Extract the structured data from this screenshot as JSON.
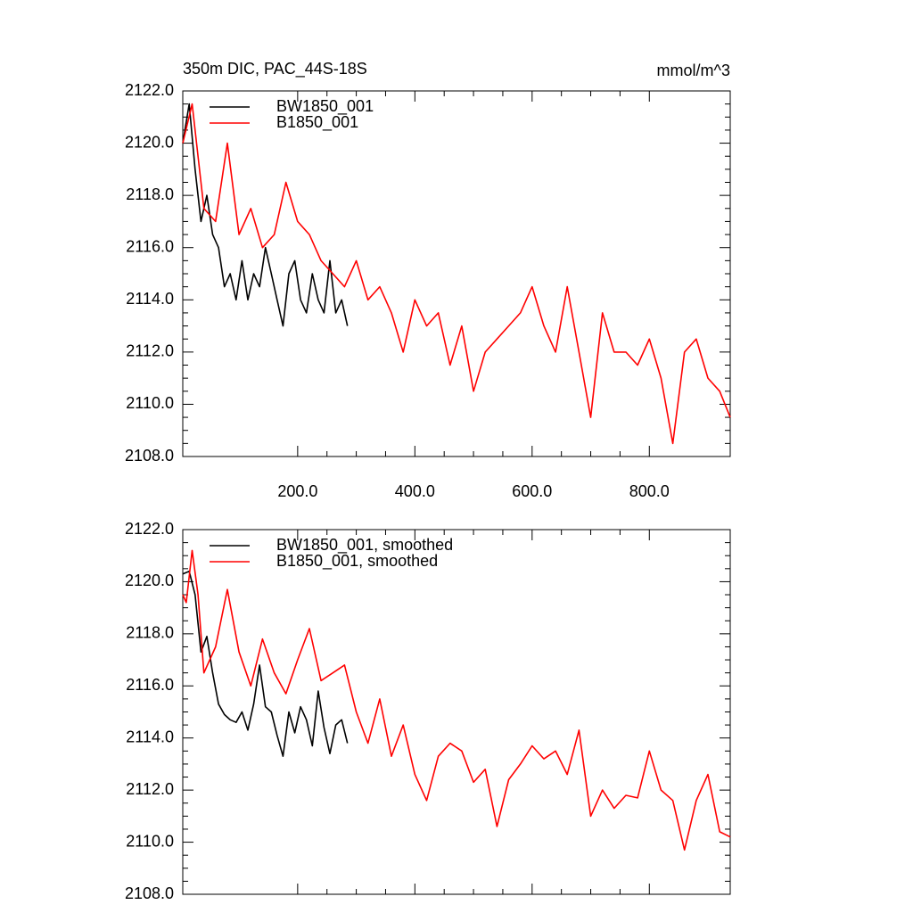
{
  "chart_data": [
    {
      "type": "line",
      "title": "350m DIC, PAC_44S-18S",
      "units": "mmol/m^3",
      "xlim": [
        4,
        938
      ],
      "ylim": [
        2108,
        2122
      ],
      "xticks": [
        {
          "value": 200,
          "label": "200.0"
        },
        {
          "value": 400,
          "label": "400.0"
        },
        {
          "value": 600,
          "label": "600.0"
        },
        {
          "value": 800,
          "label": "800.0"
        }
      ],
      "yticks": [
        {
          "value": 2108,
          "label": "2108.0"
        },
        {
          "value": 2110,
          "label": "2110.0"
        },
        {
          "value": 2112,
          "label": "2112.0"
        },
        {
          "value": 2114,
          "label": "2114.0"
        },
        {
          "value": 2116,
          "label": "2116.0"
        },
        {
          "value": 2118,
          "label": "2118.0"
        },
        {
          "value": 2120,
          "label": "2120.0"
        },
        {
          "value": 2122,
          "label": "2122.0"
        }
      ],
      "series": [
        {
          "name": "BW1850_001",
          "color": "#000000",
          "x": [
            4,
            15,
            25,
            35,
            45,
            55,
            65,
            75,
            85,
            95,
            105,
            115,
            125,
            135,
            145,
            155,
            165,
            175,
            185,
            195,
            205,
            215,
            225,
            235,
            245,
            255,
            265,
            275,
            285
          ],
          "values": [
            2120,
            2121.5,
            2119,
            2117,
            2118,
            2116.5,
            2116,
            2114.5,
            2115,
            2114,
            2115.5,
            2114,
            2115,
            2114.5,
            2116,
            2115,
            2114,
            2113,
            2115,
            2115.5,
            2114,
            2113.5,
            2115,
            2114,
            2113.5,
            2115.5,
            2113.5,
            2114,
            2113
          ]
        },
        {
          "name": "B1850_001",
          "color": "#ff0000",
          "x": [
            4,
            20,
            40,
            60,
            80,
            100,
            120,
            140,
            160,
            180,
            200,
            220,
            240,
            260,
            280,
            300,
            320,
            340,
            360,
            380,
            400,
            420,
            440,
            460,
            480,
            500,
            520,
            540,
            560,
            580,
            600,
            620,
            640,
            660,
            680,
            700,
            720,
            740,
            760,
            780,
            800,
            820,
            840,
            860,
            880,
            900,
            920,
            938
          ],
          "values": [
            2120,
            2121.5,
            2117.5,
            2117,
            2120,
            2116.5,
            2117.5,
            2116,
            2116.5,
            2118.5,
            2117,
            2116.5,
            2115.5,
            2115,
            2114.5,
            2115.5,
            2114,
            2114.5,
            2113.5,
            2112,
            2114,
            2113,
            2113.5,
            2111.5,
            2113,
            2110.5,
            2112,
            2112.5,
            2113,
            2113.5,
            2114.5,
            2113,
            2112,
            2114.5,
            2112,
            2109.5,
            2113.5,
            2112,
            2112,
            2111.5,
            2112.5,
            2111,
            2108.5,
            2112,
            2112.5,
            2111,
            2110.5,
            2109.5
          ]
        }
      ]
    },
    {
      "type": "line",
      "xlim": [
        4,
        938
      ],
      "ylim": [
        2108,
        2122
      ],
      "xticks": [
        200,
        400,
        600,
        800
      ],
      "yticks": [
        {
          "value": 2108,
          "label": "2108.0"
        },
        {
          "value": 2110,
          "label": "2110.0"
        },
        {
          "value": 2112,
          "label": "2112.0"
        },
        {
          "value": 2114,
          "label": "2114.0"
        },
        {
          "value": 2116,
          "label": "2116.0"
        },
        {
          "value": 2118,
          "label": "2118.0"
        },
        {
          "value": 2120,
          "label": "2120.0"
        },
        {
          "value": 2122,
          "label": "2122.0"
        }
      ],
      "series": [
        {
          "name": "BW1850_001, smoothed",
          "color": "#000000",
          "x": [
            4,
            15,
            25,
            35,
            45,
            55,
            65,
            75,
            85,
            95,
            105,
            115,
            125,
            135,
            145,
            155,
            165,
            175,
            185,
            195,
            205,
            215,
            225,
            235,
            245,
            255,
            265,
            275,
            285
          ],
          "values": [
            2120.3,
            2120.4,
            2119.5,
            2117.3,
            2117.9,
            2116.5,
            2115.3,
            2114.9,
            2114.7,
            2114.6,
            2115,
            2114.3,
            2115.3,
            2116.8,
            2115.2,
            2115,
            2114.1,
            2113.3,
            2115,
            2114.2,
            2115.2,
            2114.7,
            2113.7,
            2115.8,
            2114.4,
            2113.4,
            2114.5,
            2114.7,
            2113.8
          ]
        },
        {
          "name": "B1850_001, smoothed",
          "color": "#ff0000",
          "x": [
            4,
            10,
            20,
            30,
            40,
            60,
            80,
            100,
            120,
            140,
            160,
            180,
            200,
            220,
            240,
            260,
            280,
            300,
            320,
            340,
            360,
            380,
            400,
            420,
            440,
            460,
            480,
            500,
            520,
            540,
            560,
            580,
            600,
            620,
            640,
            660,
            680,
            700,
            720,
            740,
            760,
            780,
            800,
            820,
            840,
            860,
            880,
            900,
            920,
            938
          ],
          "values": [
            2119.5,
            2119.2,
            2121.2,
            2119.5,
            2116.5,
            2117.5,
            2119.7,
            2117.3,
            2116,
            2117.8,
            2116.5,
            2115.7,
            2117,
            2118.2,
            2116.2,
            2116.5,
            2116.8,
            2115,
            2113.8,
            2115.5,
            2113.3,
            2114.5,
            2112.6,
            2111.6,
            2113.3,
            2113.8,
            2113.5,
            2112.3,
            2112.8,
            2110.6,
            2112.4,
            2113,
            2113.7,
            2113.2,
            2113.5,
            2112.6,
            2114.3,
            2111,
            2112,
            2111.3,
            2111.8,
            2111.7,
            2113.5,
            2112,
            2111.6,
            2109.7,
            2111.6,
            2112.6,
            2110.4,
            2110.2
          ]
        }
      ]
    }
  ]
}
